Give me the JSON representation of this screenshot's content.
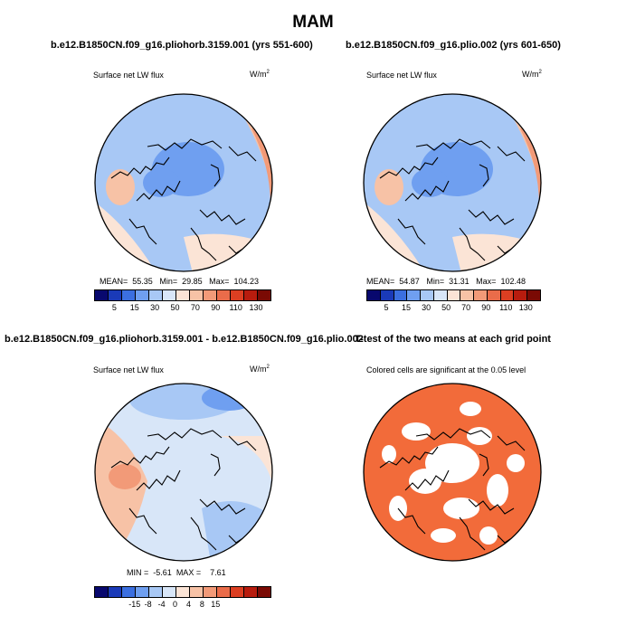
{
  "title": "MAM",
  "panels": [
    {
      "header": "b.e12.B1850CN.f09_g16.pliohorb.3159.001 (yrs 551-600)",
      "left_label": "Surface net LW flux",
      "right_label": "W/m",
      "right_label_sup": "2",
      "stats": {
        "mean_label": "MEAN=",
        "mean": "55.35",
        "min_label": "Min=",
        "min": "29.85",
        "max_label": "Max=",
        "max": "104.23"
      }
    },
    {
      "header": "b.e12.B1850CN.f09_g16.plio.002 (yrs 601-650)",
      "left_label": "Surface net LW flux",
      "right_label": "W/m",
      "right_label_sup": "2",
      "stats": {
        "mean_label": "MEAN=",
        "mean": "54.87",
        "min_label": "Min=",
        "min": "31.31",
        "max_label": "Max=",
        "max": "102.48"
      }
    },
    {
      "header": "b.e12.B1850CN.f09_g16.pliohorb.3159.001 - b.e12.B1850CN.f09_g16.plio.002",
      "left_label": "Surface net LW flux",
      "right_label": "W/m",
      "right_label_sup": "2",
      "stats": {
        "min_label": "MIN =",
        "min": "-5.61",
        "max_label": "MAX =",
        "max": "7.61"
      }
    },
    {
      "header": "T-test of the two means at each grid point",
      "left_label": "Colored cells are significant at the 0.05 level"
    }
  ],
  "colorbar_abs": {
    "colors": [
      "#08086e",
      "#1a3ab8",
      "#3b6fe0",
      "#6f9ff0",
      "#a8c8f5",
      "#d8e6f8",
      "#fbe4d6",
      "#f7c2a6",
      "#f29a78",
      "#ea6c4a",
      "#dc3f22",
      "#b81c0e",
      "#7a0a04"
    ],
    "ticks": [
      "5",
      "15",
      "30",
      "50",
      "70",
      "90",
      "110",
      "130"
    ]
  },
  "colorbar_diff": {
    "colors": [
      "#08086e",
      "#1a3ab8",
      "#3b6fe0",
      "#6f9ff0",
      "#a8c8f5",
      "#d8e6f8",
      "#fbe4d6",
      "#f7c2a6",
      "#f29a78",
      "#ea6c4a",
      "#dc3f22",
      "#b81c0e",
      "#7a0a04"
    ],
    "ticks": [
      "-15",
      "-8",
      "-4",
      "0",
      "4",
      "8",
      "15"
    ]
  },
  "significance_color": "#f26b3a"
}
